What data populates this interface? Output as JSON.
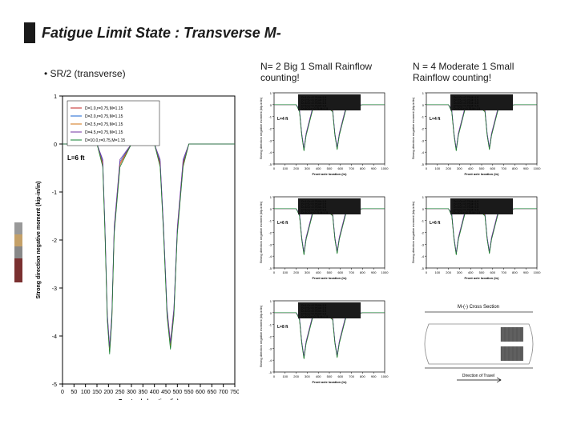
{
  "title": "Fatigue Limit State : Transverse M-",
  "subtitle1": "• SR/2 (transverse)",
  "subtitle2": "N= 2 Big 1 Small Rainflow counting!",
  "subtitle3": "N = 4 Moderate 1 Small Rainflow counting!",
  "main_chart": {
    "xlabel": "Front axle location (in)",
    "ylabel": "Strong direction negative moment (kip-in/in)",
    "xlim": [
      0,
      750
    ],
    "xtick_step": 50,
    "ylim": [
      -5,
      1
    ],
    "ytick_step": 1,
    "label_fontsize": 8,
    "tick_fontsize": 7,
    "legend": [
      "D=1.0,r=0.75,M=1.15",
      "D=2.0,r=0.75,M=1.15",
      "D=2.5,r=0.75,M=1.15",
      "D=4.5,r=0.75,M=1.15",
      "D=10.0,r=0.75,M=1.15"
    ],
    "legend_colors": [
      "#c02020",
      "#1560d0",
      "#d07010",
      "#7030a0",
      "#108030"
    ],
    "panel_label": "L=6 ft",
    "x": [
      0,
      50,
      100,
      150,
      175,
      185,
      195,
      205,
      215,
      225,
      250,
      300,
      350,
      400,
      425,
      440,
      455,
      470,
      485,
      500,
      525,
      550,
      600,
      650,
      700,
      750
    ],
    "y_base": [
      0,
      0,
      0,
      0,
      -0.4,
      -1.8,
      -3.6,
      -4.3,
      -3.6,
      -1.8,
      -0.4,
      0,
      0,
      0,
      -0.4,
      -1.8,
      -3.5,
      -4.2,
      -3.5,
      -1.8,
      -0.4,
      0,
      0,
      0,
      0,
      0
    ],
    "scatter": [
      [
        5,
        0.05
      ],
      [
        10,
        -0.02
      ],
      [
        15,
        0.03
      ],
      [
        20,
        -0.01
      ],
      [
        25,
        0.04
      ],
      [
        30,
        -0.03
      ],
      [
        35,
        0.02
      ],
      [
        40,
        0.01
      ]
    ],
    "background_color": "#ffffff",
    "axis_color": "#000000"
  },
  "small_charts": {
    "xlabel": "Front axle location (in)",
    "ylabel": "Strong direction negative moment (kip-in/in)",
    "xlim": [
      0,
      1000
    ],
    "xtick_step": 100,
    "ylim": [
      -5,
      1
    ],
    "ytick_step": 1,
    "colors": [
      "#c02020",
      "#1560d0",
      "#d07010",
      "#7030a0",
      "#108030"
    ],
    "legend_items": [
      "D=1.0,r=0.75,M=1.5",
      "D=2.5,r=0.75,M=1.5",
      "D=4.0,r=0.75,M=1.5",
      "D=6.0,r=0.75,M=1.5",
      "D=10.0,r=0.75,M=1.5"
    ],
    "panels_col2": [
      "L=4 ft",
      "L=6 ft",
      "L=8 ft"
    ],
    "panels_col3": [
      "L=4 ft",
      "L=6 ft"
    ],
    "x": [
      0,
      100,
      200,
      230,
      250,
      270,
      290,
      350,
      450,
      530,
      550,
      570,
      590,
      650,
      800,
      900,
      1000
    ],
    "y": [
      0,
      0,
      0,
      -0.5,
      -2.5,
      -3.8,
      -2.5,
      -0.3,
      0,
      -0.5,
      -2.5,
      -3.7,
      -2.5,
      -0.3,
      0,
      0,
      0
    ]
  },
  "diagram": {
    "title": "M-(-) Cross Section",
    "bottom_label": "Direction of Travel",
    "box_color": "#606060",
    "line_color": "#303030"
  }
}
